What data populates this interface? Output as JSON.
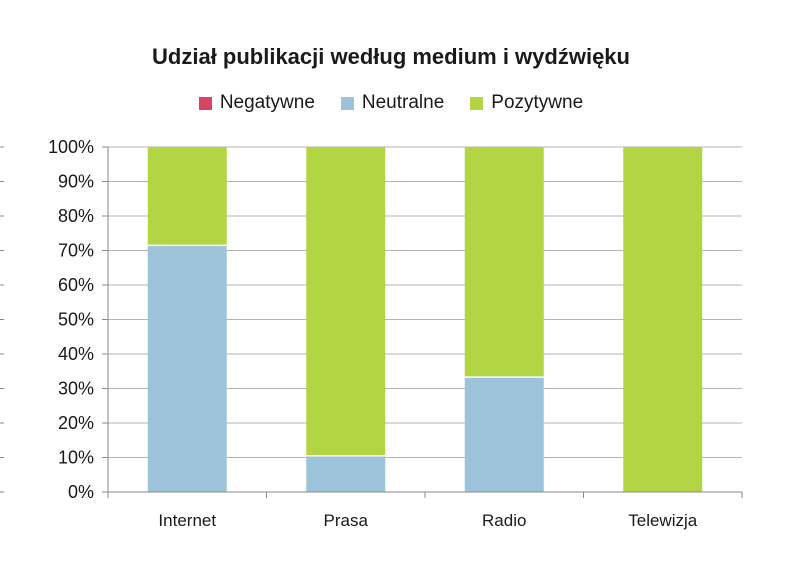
{
  "chart_data": {
    "type": "bar",
    "stacked": true,
    "title": "Udział publikacji według medium i wydźwięku",
    "xlabel": "",
    "ylabel": "",
    "categories": [
      "Internet",
      "Prasa",
      "Radio",
      "Telewizja"
    ],
    "series": [
      {
        "name": "Negatywne",
        "color": "#d94464",
        "values": [
          0,
          0,
          0,
          0
        ]
      },
      {
        "name": "Neutralne",
        "color": "#9dc3da",
        "values": [
          71.5,
          10.5,
          33.3,
          0
        ]
      },
      {
        "name": "Pozytywne",
        "color": "#b3d443",
        "values": [
          28.5,
          89.5,
          66.7,
          100
        ]
      }
    ],
    "ylim": [
      0,
      100
    ],
    "yticks": [
      "0%",
      "10%",
      "20%",
      "30%",
      "40%",
      "50%",
      "60%",
      "70%",
      "80%",
      "90%",
      "100%"
    ],
    "grid": true,
    "legend": "top"
  }
}
